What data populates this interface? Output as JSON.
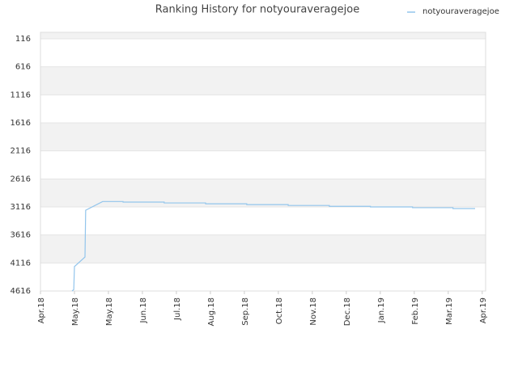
{
  "chart_data": {
    "type": "line",
    "title": "Ranking History for notyouraveragejoe",
    "x": [
      0.93,
      0.98,
      1.0,
      1.31,
      1.33,
      1.83,
      2.43,
      2.43,
      3.64,
      3.64,
      4.86,
      4.86,
      6.07,
      6.07,
      7.29,
      7.29,
      8.5,
      8.5,
      9.71,
      9.71,
      10.95,
      10.95,
      12.14,
      12.14,
      12.79
    ],
    "series": [
      {
        "name": "notyouraveragejoe",
        "color": "#92c5ec",
        "values": [
          4616,
          4590,
          4180,
          4010,
          3175,
          3020,
          3020,
          3030,
          3030,
          3045,
          3045,
          3060,
          3060,
          3075,
          3075,
          3090,
          3090,
          3105,
          3105,
          3116,
          3116,
          3130,
          3130,
          3145,
          3145
        ]
      }
    ],
    "xlim": [
      0,
      13.1
    ],
    "xticks": [
      {
        "value": 0,
        "label": "Apr.18"
      },
      {
        "value": 1,
        "label": "May.18"
      },
      {
        "value": 2,
        "label": "May.18"
      },
      {
        "value": 3,
        "label": "Jun.18"
      },
      {
        "value": 4,
        "label": "Jul.18"
      },
      {
        "value": 5,
        "label": "Aug.18"
      },
      {
        "value": 6,
        "label": "Sep.18"
      },
      {
        "value": 7,
        "label": "Oct.18"
      },
      {
        "value": 8,
        "label": "Nov.18"
      },
      {
        "value": 9,
        "label": "Dec.18"
      },
      {
        "value": 10,
        "label": "Jan.19"
      },
      {
        "value": 11,
        "label": "Feb.19"
      },
      {
        "value": 12,
        "label": "Mar.19"
      },
      {
        "value": 13,
        "label": "Apr.19"
      }
    ],
    "ylim": [
      4616,
      1
    ],
    "yticks": [
      116,
      616,
      1116,
      1616,
      2116,
      2616,
      3116,
      3616,
      4116,
      4616
    ],
    "grid": true,
    "legend": "top-right"
  }
}
